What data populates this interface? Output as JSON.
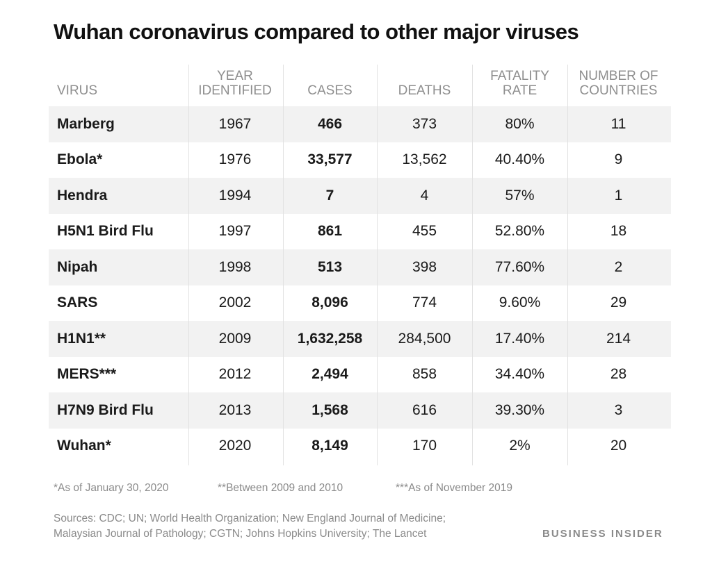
{
  "title": "Wuhan coronavirus compared to other major viruses",
  "chart_data": {
    "type": "table",
    "title": "Wuhan coronavirus compared to other major viruses",
    "columns": [
      "VIRUS",
      "YEAR IDENTIFIED",
      "CASES",
      "DEATHS",
      "FATALITY RATE",
      "NUMBER OF COUNTRIES"
    ],
    "rows": [
      [
        "Marberg",
        "1967",
        "466",
        "373",
        "80%",
        "11"
      ],
      [
        "Ebola*",
        "1976",
        "33,577",
        "13,562",
        "40.40%",
        "9"
      ],
      [
        "Hendra",
        "1994",
        "7",
        "4",
        "57%",
        "1"
      ],
      [
        "H5N1 Bird Flu",
        "1997",
        "861",
        "455",
        "52.80%",
        "18"
      ],
      [
        "Nipah",
        "1998",
        "513",
        "398",
        "77.60%",
        "2"
      ],
      [
        "SARS",
        "2002",
        "8,096",
        "774",
        "9.60%",
        "29"
      ],
      [
        "H1N1**",
        "2009",
        "1,632,258",
        "284,500",
        "17.40%",
        "214"
      ],
      [
        "MERS***",
        "2012",
        "2,494",
        "858",
        "34.40%",
        "28"
      ],
      [
        "H7N9 Bird Flu",
        "2013",
        "1,568",
        "616",
        "39.30%",
        "3"
      ],
      [
        "Wuhan*",
        "2020",
        "8,149",
        "170",
        "2%",
        "20"
      ]
    ]
  },
  "footnotes": {
    "note1": "*As of January 30, 2020",
    "note2": "**Between 2009 and 2010",
    "note3": "***As of November 2019"
  },
  "sources_line1": "Sources: CDC; UN; World Health Organization; New England Journal of Medicine;",
  "sources_line2": "Malaysian Journal of Pathology; CGTN; Johns Hopkins University; The Lancet",
  "brand": "BUSINESS INSIDER",
  "colors": {
    "header_text": "#8e8e8e",
    "row_shade": "#f2f2f2",
    "divider": "#e2e2e2"
  }
}
